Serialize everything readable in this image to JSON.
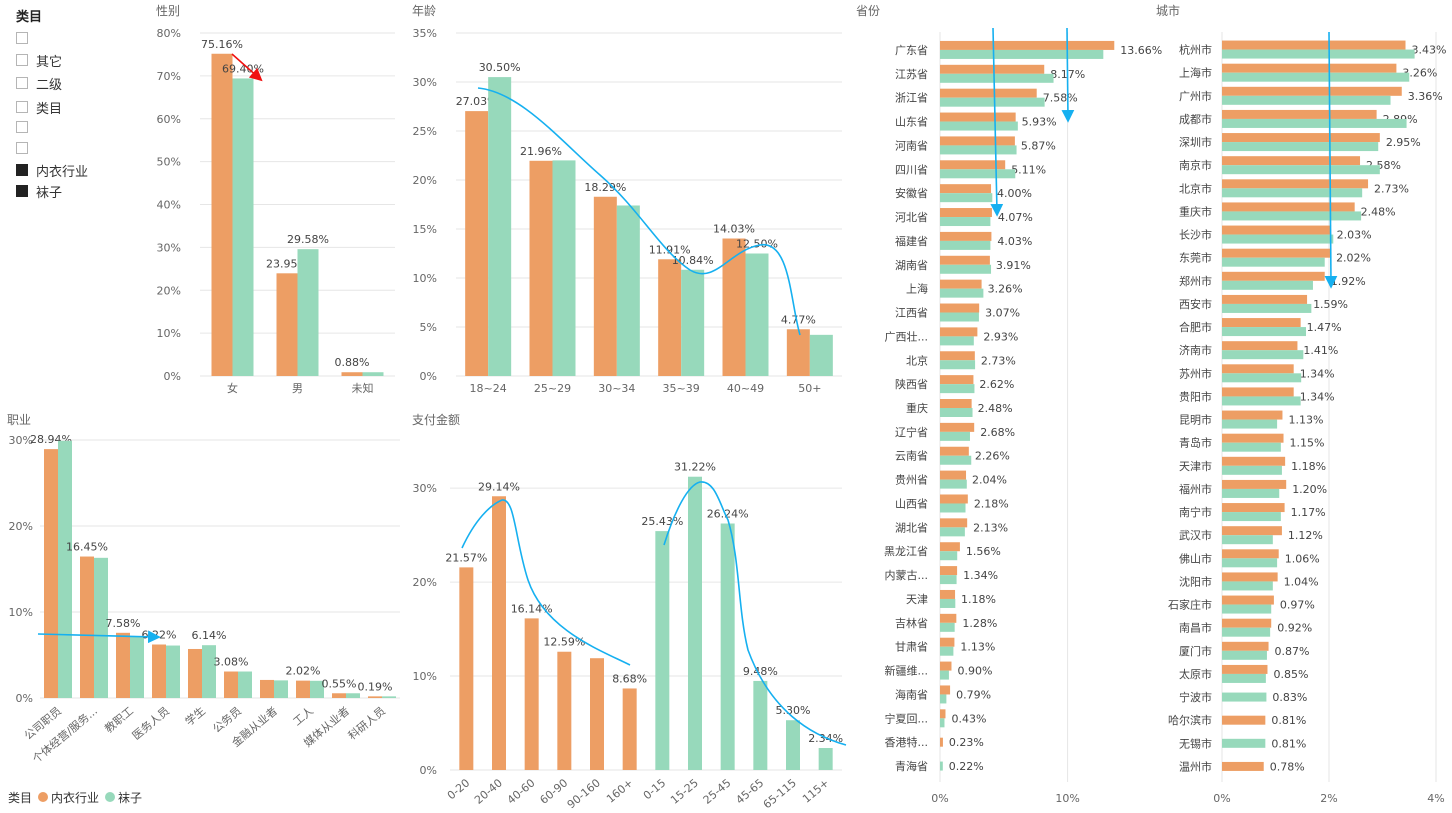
{
  "colors": {
    "orange": "#ed9e64",
    "green": "#97d9bb",
    "arrow_blue": "#16b0f0",
    "arrow_red": "#f01010",
    "grid": "#e6e6e6",
    "axis_text": "#666666"
  },
  "slicer": {
    "title": "类目",
    "items": [
      {
        "label": "",
        "checked": false
      },
      {
        "label": "其它",
        "checked": false
      },
      {
        "label": "二级",
        "checked": false
      },
      {
        "label": "类目",
        "checked": false
      },
      {
        "label": "",
        "checked": false
      },
      {
        "label": "",
        "checked": false
      },
      {
        "label": "内衣行业",
        "checked": true
      },
      {
        "label": "袜子",
        "checked": true
      }
    ]
  },
  "legend": {
    "title": "类目",
    "items": [
      "内衣行业",
      "袜子"
    ]
  },
  "chart_data": [
    {
      "id": "gender",
      "type": "bar",
      "title": "性别",
      "categories": [
        "女",
        "男",
        "未知"
      ],
      "yticks": [
        "0%",
        "10%",
        "20%",
        "30%",
        "40%",
        "50%",
        "60%",
        "70%",
        "80%"
      ],
      "ylim": [
        0,
        80
      ],
      "series": [
        {
          "name": "内衣行业",
          "values": [
            75.16,
            23.95,
            0.88
          ],
          "labels": [
            "75.16%",
            "23.95%",
            "0.88%"
          ]
        },
        {
          "name": "袜子",
          "values": [
            69.4,
            29.58,
            0.88
          ],
          "labels": [
            "69.40%",
            "29.58%",
            ""
          ]
        }
      ]
    },
    {
      "id": "age",
      "type": "bar",
      "title": "年龄",
      "categories": [
        "18~24",
        "25~29",
        "30~34",
        "35~39",
        "40~49",
        "50+"
      ],
      "yticks": [
        "0%",
        "5%",
        "10%",
        "15%",
        "20%",
        "25%",
        "30%",
        "35%"
      ],
      "ylim": [
        0,
        35
      ],
      "series": [
        {
          "name": "内衣行业",
          "values": [
            27.03,
            21.96,
            18.29,
            11.91,
            14.03,
            4.77
          ],
          "labels": [
            "27.03%",
            "21.96%",
            "18.29%",
            "11.91%",
            "14.03%",
            "4.77%"
          ]
        },
        {
          "name": "袜子",
          "values": [
            30.5,
            22.0,
            17.4,
            10.84,
            12.5,
            4.2
          ],
          "labels": [
            "30.50%",
            "",
            "",
            "10.84%",
            "12.50%",
            ""
          ]
        }
      ]
    },
    {
      "id": "occupation",
      "type": "bar",
      "title": "职业",
      "categories": [
        "公司职员",
        "个体经营/服务...",
        "教职工",
        "医务人员",
        "学生",
        "公务员",
        "金融从业者",
        "工人",
        "媒体从业者",
        "科研人员"
      ],
      "yticks": [
        "0%",
        "10%",
        "20%",
        "30%"
      ],
      "ylim": [
        0,
        30
      ],
      "series": [
        {
          "name": "内衣行业",
          "values": [
            28.94,
            16.45,
            7.58,
            6.22,
            5.7,
            3.08,
            2.1,
            2.02,
            0.55,
            0.19
          ],
          "labels": [
            "28.94%",
            "16.45%",
            "7.58%",
            "6.22%",
            "",
            "3.08%",
            "",
            "2.02%",
            "0.55%",
            "0.19%"
          ]
        },
        {
          "name": "袜子",
          "values": [
            29.9,
            16.3,
            7.2,
            6.1,
            6.14,
            3.08,
            2.05,
            2.0,
            0.55,
            0.19
          ],
          "labels": [
            "",
            "",
            "",
            "",
            "6.14%",
            "",
            "",
            "",
            "",
            ""
          ]
        }
      ]
    },
    {
      "id": "payment",
      "type": "bar",
      "title": "支付金额",
      "categories": [
        "0-20",
        "20-40",
        "40-60",
        "60-90",
        "90-160",
        "160+",
        "0-15",
        "15-25",
        "25-45",
        "45-65",
        "65-115",
        "115+"
      ],
      "yticks": [
        "0%",
        "10%",
        "20%",
        "30%"
      ],
      "ylim": [
        0,
        33
      ],
      "series": [
        {
          "name": "内衣行业",
          "values": [
            21.57,
            29.14,
            16.14,
            12.59,
            11.9,
            8.68,
            null,
            null,
            null,
            null,
            null,
            null
          ],
          "labels": [
            "21.57%",
            "29.14%",
            "16.14%",
            "12.59%",
            "",
            "8.68%",
            "",
            "",
            "",
            "",
            "",
            ""
          ]
        },
        {
          "name": "袜子",
          "values": [
            null,
            null,
            null,
            null,
            null,
            null,
            25.43,
            31.22,
            26.24,
            9.48,
            5.3,
            2.34
          ],
          "labels": [
            "",
            "",
            "",
            "",
            "",
            "",
            "25.43%",
            "31.22%",
            "26.24%",
            "9.48%",
            "5.30%",
            "2.34%"
          ]
        }
      ]
    },
    {
      "id": "province",
      "type": "bar",
      "orientation": "horizontal",
      "title": "省份",
      "categories": [
        "广东省",
        "江苏省",
        "浙江省",
        "山东省",
        "河南省",
        "四川省",
        "安徽省",
        "河北省",
        "福建省",
        "湖南省",
        "上海",
        "江西省",
        "广西壮...",
        "北京",
        "陕西省",
        "重庆",
        "辽宁省",
        "云南省",
        "贵州省",
        "山西省",
        "湖北省",
        "黑龙江省",
        "内蒙古...",
        "天津",
        "吉林省",
        "甘肃省",
        "新疆维...",
        "海南省",
        "宁夏回...",
        "香港特...",
        "青海省"
      ],
      "xticks": [
        "0%",
        "10%"
      ],
      "xlim": [
        0,
        14.5
      ],
      "series": [
        {
          "name": "内衣行业",
          "values": [
            13.66,
            8.17,
            7.58,
            5.93,
            5.87,
            5.11,
            4.0,
            4.07,
            4.03,
            3.91,
            3.26,
            3.07,
            2.93,
            2.73,
            2.62,
            2.48,
            2.68,
            2.26,
            2.04,
            2.18,
            2.13,
            1.56,
            1.34,
            1.18,
            1.28,
            1.13,
            0.9,
            0.79,
            0.43,
            0.23,
            null
          ],
          "labels": [
            "13.66%",
            "8.17%",
            "7.58%",
            "5.93%",
            "5.87%",
            "5.11%",
            "4.00%",
            "4.07%",
            "4.03%",
            "3.91%",
            "3.26%",
            "3.07%",
            "2.93%",
            "2.73%",
            "2.62%",
            "2.48%",
            "2.68%",
            "2.26%",
            "2.04%",
            "2.18%",
            "2.13%",
            "1.56%",
            "1.34%",
            "1.18%",
            "1.28%",
            "1.13%",
            "0.90%",
            "0.79%",
            "0.43%",
            "0.23%",
            ""
          ]
        },
        {
          "name": "袜子",
          "values": [
            12.8,
            8.9,
            8.2,
            6.1,
            6.0,
            5.9,
            4.1,
            3.95,
            3.95,
            4.0,
            3.4,
            3.05,
            2.65,
            2.75,
            2.7,
            2.55,
            2.35,
            2.45,
            2.1,
            2.0,
            1.95,
            1.35,
            1.3,
            1.2,
            1.15,
            1.05,
            0.7,
            0.5,
            0.35,
            null,
            0.22
          ],
          "labels": [
            "",
            "",
            "",
            "",
            "",
            "",
            "",
            "",
            "",
            "",
            "",
            "",
            "",
            "",
            "",
            "",
            "",
            "",
            "",
            "",
            "",
            "",
            "",
            "",
            "",
            "",
            "",
            "",
            "",
            "",
            "0.22%"
          ]
        }
      ]
    },
    {
      "id": "city",
      "type": "bar",
      "orientation": "horizontal",
      "title": "城市",
      "categories": [
        "杭州市",
        "上海市",
        "广州市",
        "成都市",
        "深圳市",
        "南京市",
        "北京市",
        "重庆市",
        "长沙市",
        "东莞市",
        "郑州市",
        "西安市",
        "合肥市",
        "济南市",
        "苏州市",
        "贵阳市",
        "昆明市",
        "青岛市",
        "天津市",
        "福州市",
        "南宁市",
        "武汉市",
        "佛山市",
        "沈阳市",
        "石家庄市",
        "南昌市",
        "厦门市",
        "太原市",
        "宁波市",
        "哈尔滨市",
        "无锡市",
        "温州市"
      ],
      "xticks": [
        "0%",
        "2%",
        "4%"
      ],
      "xlim": [
        0,
        4
      ],
      "series": [
        {
          "name": "内衣行业",
          "values": [
            3.43,
            3.26,
            3.36,
            2.89,
            2.95,
            2.58,
            2.73,
            2.48,
            2.03,
            2.02,
            1.92,
            1.59,
            1.47,
            1.41,
            1.34,
            1.34,
            1.13,
            1.15,
            1.18,
            1.2,
            1.17,
            1.12,
            1.06,
            1.04,
            0.97,
            0.92,
            0.87,
            0.85,
            null,
            0.81,
            null,
            0.78
          ],
          "labels": [
            "3.43%",
            "3.26%",
            "3.36%",
            "2.89%",
            "2.95%",
            "2.58%",
            "2.73%",
            "2.48%",
            "2.03%",
            "2.02%",
            "1.92%",
            "1.59%",
            "1.47%",
            "1.41%",
            "1.34%",
            "1.34%",
            "1.13%",
            "1.15%",
            "1.18%",
            "1.20%",
            "1.17%",
            "1.12%",
            "1.06%",
            "1.04%",
            "0.97%",
            "0.92%",
            "0.87%",
            "0.85%",
            "",
            "0.81%",
            "",
            "0.78%"
          ]
        },
        {
          "name": "袜子",
          "values": [
            3.6,
            3.5,
            3.15,
            3.45,
            2.92,
            2.95,
            2.62,
            2.6,
            2.08,
            1.92,
            1.7,
            1.67,
            1.57,
            1.52,
            1.48,
            1.47,
            1.03,
            1.1,
            1.12,
            1.07,
            1.1,
            0.95,
            1.03,
            0.95,
            0.92,
            0.9,
            0.84,
            0.82,
            0.83,
            null,
            0.81,
            null
          ],
          "labels": [
            "",
            "",
            "",
            "",
            "",
            "",
            "",
            "",
            "",
            "",
            "",
            "",
            "",
            "",
            "",
            "",
            "",
            "",
            "",
            "",
            "",
            "",
            "",
            "",
            "",
            "",
            "",
            "",
            "0.83%",
            "",
            "0.81%",
            ""
          ]
        }
      ]
    }
  ]
}
